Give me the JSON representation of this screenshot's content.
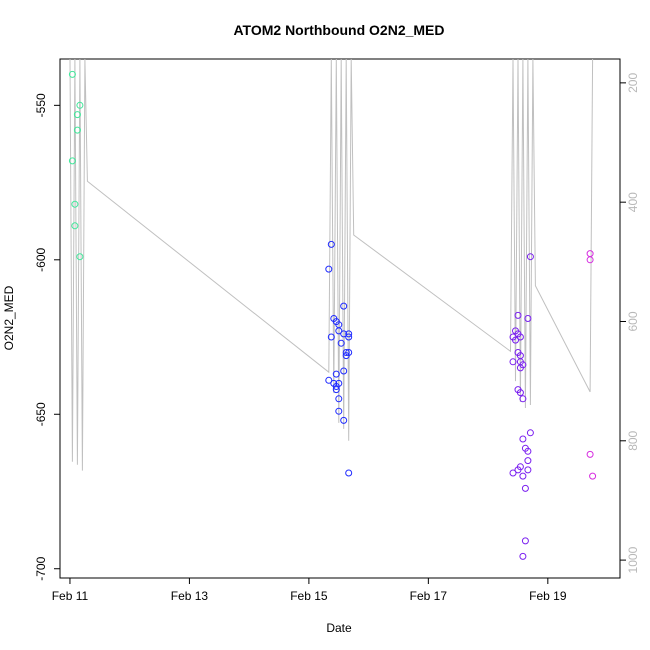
{
  "chart_data": {
    "type": "scatter",
    "title": "ATOM2 Northbound O2N2_MED",
    "xlabel": "Date",
    "ylabel": "O2N2_MED",
    "xlim": [
      "2011-02-10 20:00",
      "2011-02-20 05:00"
    ],
    "ylim": [
      -703.0,
      -535.0
    ],
    "y2lim": [
      1030.0,
      160.0
    ],
    "x_ticks": [
      "2011-02-11",
      "2011-02-13",
      "2011-02-15",
      "2011-02-17",
      "2011-02-19"
    ],
    "x_tick_labels": [
      "Feb 11",
      "Feb 13",
      "Feb 15",
      "Feb 17",
      "Feb 19"
    ],
    "y_ticks": [
      -550,
      -600,
      -650,
      -700
    ],
    "y_tick_labels": [
      "-550",
      "-600",
      "-650",
      "-700"
    ],
    "y2_ticks": [
      200,
      400,
      600,
      800,
      1000
    ],
    "y2_tick_labels": [
      "200",
      "400",
      "600",
      "800",
      "1000"
    ],
    "grid": false,
    "series": [
      {
        "color": "#3fe89a",
        "points": [
          {
            "x": "2011-02-11 01:00",
            "y": -540
          },
          {
            "x": "2011-02-11 04:00",
            "y": -550
          },
          {
            "x": "2011-02-11 03:00",
            "y": -553
          },
          {
            "x": "2011-02-11 03:00",
            "y": -558
          },
          {
            "x": "2011-02-11 01:00",
            "y": -568
          },
          {
            "x": "2011-02-11 02:00",
            "y": -582
          },
          {
            "x": "2011-02-11 02:00",
            "y": -589
          },
          {
            "x": "2011-02-11 04:00",
            "y": -599
          }
        ]
      },
      {
        "color": "#1f2bff",
        "points": [
          {
            "x": "2011-02-15 09:00",
            "y": -595
          },
          {
            "x": "2011-02-15 08:00",
            "y": -603
          },
          {
            "x": "2011-02-15 14:00",
            "y": -615
          },
          {
            "x": "2011-02-15 10:00",
            "y": -619
          },
          {
            "x": "2011-02-15 11:00",
            "y": -620
          },
          {
            "x": "2011-02-15 12:00",
            "y": -621
          },
          {
            "x": "2011-02-15 12:00",
            "y": -623
          },
          {
            "x": "2011-02-15 14:00",
            "y": -624
          },
          {
            "x": "2011-02-15 16:00",
            "y": -624
          },
          {
            "x": "2011-02-15 16:00",
            "y": -625
          },
          {
            "x": "2011-02-15 09:00",
            "y": -625
          },
          {
            "x": "2011-02-15 13:00",
            "y": -627
          },
          {
            "x": "2011-02-15 15:00",
            "y": -630
          },
          {
            "x": "2011-02-15 16:00",
            "y": -630
          },
          {
            "x": "2011-02-15 15:00",
            "y": -631
          },
          {
            "x": "2011-02-15 14:00",
            "y": -636
          },
          {
            "x": "2011-02-15 11:00",
            "y": -637
          },
          {
            "x": "2011-02-15 08:00",
            "y": -639
          },
          {
            "x": "2011-02-15 10:00",
            "y": -640
          },
          {
            "x": "2011-02-15 12:00",
            "y": -640
          },
          {
            "x": "2011-02-15 11:00",
            "y": -641
          },
          {
            "x": "2011-02-15 11:00",
            "y": -642
          },
          {
            "x": "2011-02-15 12:00",
            "y": -645
          },
          {
            "x": "2011-02-15 12:00",
            "y": -649
          },
          {
            "x": "2011-02-15 14:00",
            "y": -652
          },
          {
            "x": "2011-02-15 16:00",
            "y": -669
          }
        ]
      },
      {
        "color": "#7a1ff0",
        "points": [
          {
            "x": "2011-02-18 12:00",
            "y": -618
          },
          {
            "x": "2011-02-18 11:00",
            "y": -623
          },
          {
            "x": "2011-02-18 12:00",
            "y": -624
          },
          {
            "x": "2011-02-18 10:00",
            "y": -625
          },
          {
            "x": "2011-02-18 13:00",
            "y": -625
          },
          {
            "x": "2011-02-18 11:00",
            "y": -626
          },
          {
            "x": "2011-02-18 12:00",
            "y": -630
          },
          {
            "x": "2011-02-18 13:00",
            "y": -631
          },
          {
            "x": "2011-02-18 10:00",
            "y": -633
          },
          {
            "x": "2011-02-18 13:00",
            "y": -633
          },
          {
            "x": "2011-02-18 14:00",
            "y": -634
          },
          {
            "x": "2011-02-18 13:00",
            "y": -635
          },
          {
            "x": "2011-02-18 12:00",
            "y": -642
          },
          {
            "x": "2011-02-18 13:00",
            "y": -643
          },
          {
            "x": "2011-02-18 14:00",
            "y": -645
          },
          {
            "x": "2011-02-18 16:00",
            "y": -619
          },
          {
            "x": "2011-02-18 17:00",
            "y": -599
          },
          {
            "x": "2011-02-18 17:00",
            "y": -656
          },
          {
            "x": "2011-02-18 14:00",
            "y": -658
          },
          {
            "x": "2011-02-18 15:00",
            "y": -661
          },
          {
            "x": "2011-02-18 16:00",
            "y": -662
          },
          {
            "x": "2011-02-18 16:00",
            "y": -665
          },
          {
            "x": "2011-02-18 13:00",
            "y": -667
          },
          {
            "x": "2011-02-18 12:00",
            "y": -668
          },
          {
            "x": "2011-02-18 16:00",
            "y": -668
          },
          {
            "x": "2011-02-18 10:00",
            "y": -669
          },
          {
            "x": "2011-02-18 14:00",
            "y": -670
          },
          {
            "x": "2011-02-18 15:00",
            "y": -674
          },
          {
            "x": "2011-02-18 15:00",
            "y": -691
          },
          {
            "x": "2011-02-18 14:00",
            "y": -696
          }
        ]
      },
      {
        "color": "#d62be0",
        "points": [
          {
            "x": "2011-02-19 17:00",
            "y": -598
          },
          {
            "x": "2011-02-19 17:00",
            "y": -600
          },
          {
            "x": "2011-02-19 17:00",
            "y": -663
          },
          {
            "x": "2011-02-19 18:00",
            "y": -670
          }
        ]
      }
    ],
    "secondary_line": {
      "color": "#c0c0c0",
      "axis": "right",
      "points": [
        {
          "x": "2011-02-11 00:00",
          "y": 160
        },
        {
          "x": "2011-02-11 01:00",
          "y": 835
        },
        {
          "x": "2011-02-11 02:00",
          "y": 160
        },
        {
          "x": "2011-02-11 03:00",
          "y": 840
        },
        {
          "x": "2011-02-11 04:00",
          "y": 160
        },
        {
          "x": "2011-02-11 05:00",
          "y": 850
        },
        {
          "x": "2011-02-11 06:00",
          "y": 160
        },
        {
          "x": "2011-02-11 07:00",
          "y": 365
        },
        {
          "x": "2011-02-15 08:00",
          "y": 685
        },
        {
          "x": "2011-02-15 09:00",
          "y": 160
        },
        {
          "x": "2011-02-15 10:00",
          "y": 720
        },
        {
          "x": "2011-02-15 11:00",
          "y": 160
        },
        {
          "x": "2011-02-15 12:00",
          "y": 770
        },
        {
          "x": "2011-02-15 13:00",
          "y": 160
        },
        {
          "x": "2011-02-15 14:00",
          "y": 780
        },
        {
          "x": "2011-02-15 15:00",
          "y": 160
        },
        {
          "x": "2011-02-15 16:00",
          "y": 800
        },
        {
          "x": "2011-02-15 17:00",
          "y": 160
        },
        {
          "x": "2011-02-15 18:00",
          "y": 455
        },
        {
          "x": "2011-02-18 09:00",
          "y": 650
        },
        {
          "x": "2011-02-18 10:00",
          "y": 160
        },
        {
          "x": "2011-02-18 11:00",
          "y": 700
        },
        {
          "x": "2011-02-18 12:00",
          "y": 160
        },
        {
          "x": "2011-02-18 13:00",
          "y": 735
        },
        {
          "x": "2011-02-18 14:00",
          "y": 160
        },
        {
          "x": "2011-02-18 15:00",
          "y": 745
        },
        {
          "x": "2011-02-18 16:00",
          "y": 160
        },
        {
          "x": "2011-02-18 17:00",
          "y": 740
        },
        {
          "x": "2011-02-18 18:00",
          "y": 160
        },
        {
          "x": "2011-02-18 19:00",
          "y": 540
        },
        {
          "x": "2011-02-19 17:00",
          "y": 718
        },
        {
          "x": "2011-02-19 18:00",
          "y": 160
        }
      ]
    }
  }
}
